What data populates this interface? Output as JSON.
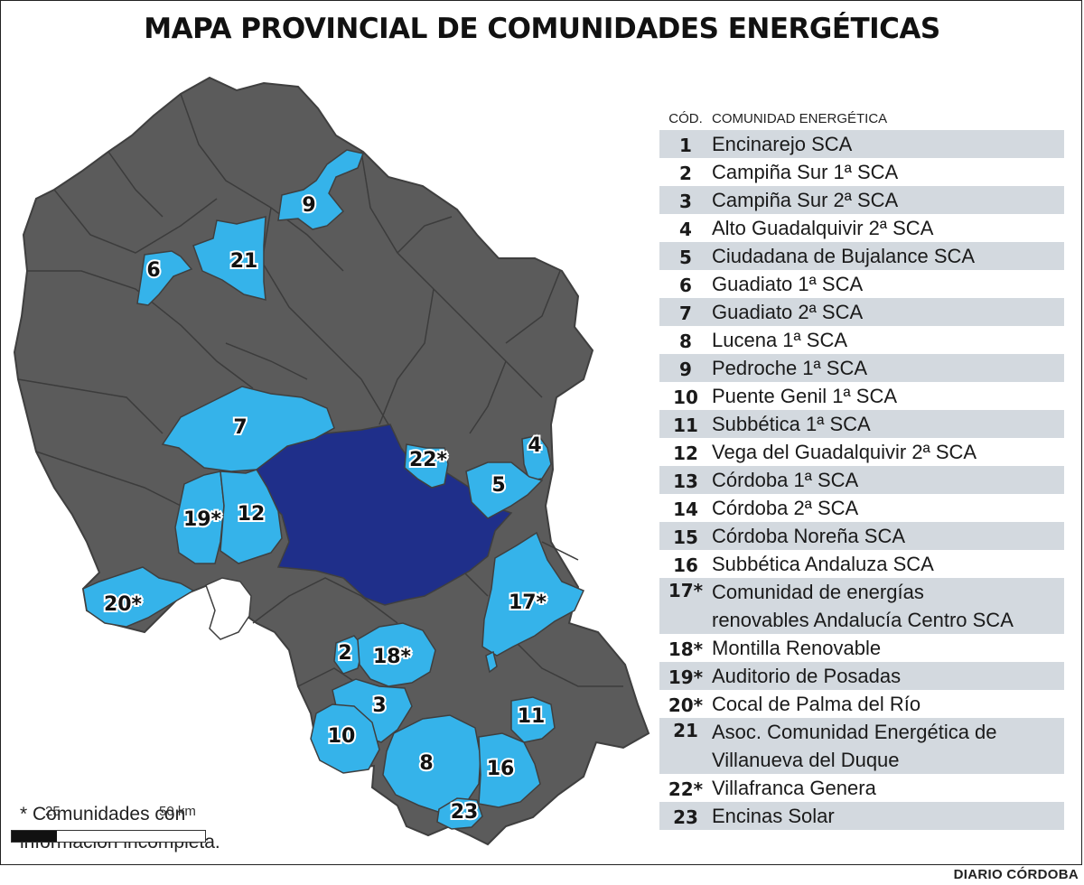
{
  "title": "MAPA PROVINCIAL DE COMUNIDADES ENERGÉTICAS",
  "colors": {
    "province": "#5b5b5b",
    "border": "#3f3f3f",
    "community": "#35b3ea",
    "highlight": "#1f2f8a",
    "row_shade": "#d3d9df"
  },
  "legend": {
    "col_code": "CÓD.",
    "col_name": "COMUNIDAD ENERGÉTICA",
    "rows": [
      {
        "code": "1",
        "name": "Encinarejo SCA"
      },
      {
        "code": "2",
        "name": "Campiña Sur 1ª SCA"
      },
      {
        "code": "3",
        "name": "Campiña Sur 2ª SCA"
      },
      {
        "code": "4",
        "name": "Alto Guadalquivir 2ª SCA"
      },
      {
        "code": "5",
        "name": "Ciudadana de Bujalance SCA"
      },
      {
        "code": "6",
        "name": "Guadiato 1ª SCA"
      },
      {
        "code": "7",
        "name": "Guadiato 2ª SCA"
      },
      {
        "code": "8",
        "name": "Lucena 1ª SCA"
      },
      {
        "code": "9",
        "name": "Pedroche 1ª SCA"
      },
      {
        "code": "10",
        "name": "Puente Genil 1ª SCA"
      },
      {
        "code": "11",
        "name": "Subbética 1ª SCA"
      },
      {
        "code": "12",
        "name": "Vega del Guadalquivir 2ª SCA"
      },
      {
        "code": "13",
        "name": "Córdoba 1ª SCA"
      },
      {
        "code": "14",
        "name": "Córdoba 2ª SCA"
      },
      {
        "code": "15",
        "name": "Córdoba Noreña SCA"
      },
      {
        "code": "16",
        "name": "Subbética Andaluza SCA"
      },
      {
        "code": "17*",
        "name": "Comunidad de energías\nrenovables Andalucía Centro SCA"
      },
      {
        "code": "18*",
        "name": "Montilla Renovable"
      },
      {
        "code": "19*",
        "name": "Auditorio de Posadas"
      },
      {
        "code": "20*",
        "name": "Cocal de Palma del Río"
      },
      {
        "code": "21",
        "name": "Asoc. Comunidad Energética de\nVillanueva del Duque"
      },
      {
        "code": "22*",
        "name": "Villafranca Genera"
      },
      {
        "code": "23",
        "name": "Encinas Solar"
      }
    ]
  },
  "map_labels": {
    "l9": "9",
    "l21": "21",
    "l6": "6",
    "l7": "7",
    "l22": "22*",
    "l4": "4",
    "l5": "5",
    "l19": "19*",
    "l12": "12",
    "l20": "20*",
    "l17": "17*",
    "l2": "2",
    "l18": "18*",
    "l3": "3",
    "l10": "10",
    "l11": "11",
    "l8": "8",
    "l16": "16",
    "l23": "23"
  },
  "footnote": {
    "line1": "* Comunidades con",
    "line2": "información incompleta."
  },
  "scale": {
    "tick_a": "25",
    "tick_b": "50 km"
  },
  "credit": "DIARIO CÓRDOBA"
}
